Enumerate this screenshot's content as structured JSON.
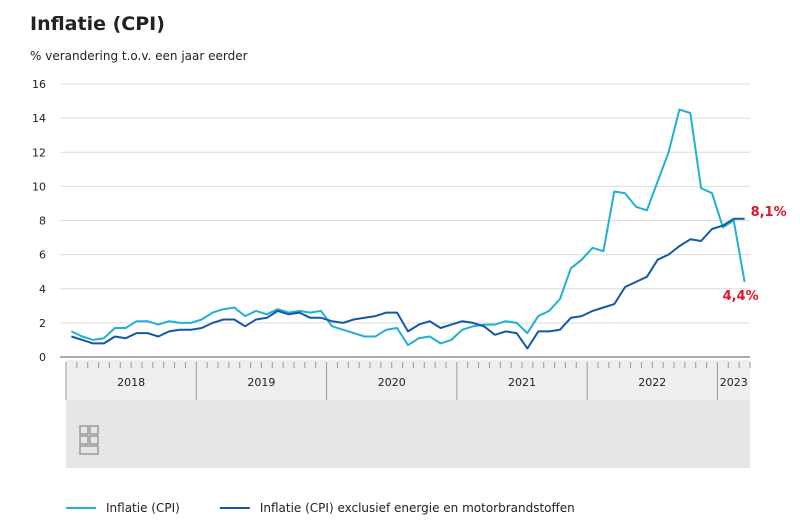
{
  "chart_data": {
    "type": "line",
    "title": "Inflatie (CPI)",
    "subtitle": "% verandering t.o.v. een jaar eerder",
    "years": [
      "2018",
      "2019",
      "2020",
      "2021",
      "2022",
      "2023"
    ],
    "categories": [
      null,
      null,
      null,
      null,
      null,
      null,
      null,
      null,
      null,
      null,
      null,
      null,
      null,
      null,
      null,
      null,
      null,
      null,
      null,
      null,
      null,
      null,
      null,
      null,
      null,
      null,
      null,
      null,
      null,
      null,
      null,
      null,
      null,
      null,
      null,
      null,
      null,
      null,
      null,
      null,
      null,
      null,
      null,
      null,
      null,
      null,
      null,
      null,
      null,
      null,
      null,
      null,
      null,
      null,
      null,
      null,
      null,
      null,
      null,
      null,
      null,
      null,
      null
    ],
    "ylim": [
      0,
      16
    ],
    "yticks": [
      0,
      2,
      4,
      6,
      8,
      10,
      12,
      14,
      16
    ],
    "grid": true,
    "series": [
      {
        "name": "Inflatie (CPI)",
        "color": "#21b0d3",
        "values": [
          1.5,
          1.2,
          1.0,
          1.1,
          1.7,
          1.7,
          2.1,
          2.1,
          1.9,
          2.1,
          2.0,
          2.0,
          2.2,
          2.6,
          2.8,
          2.9,
          2.4,
          2.7,
          2.5,
          2.8,
          2.6,
          2.7,
          2.6,
          2.7,
          1.8,
          1.6,
          1.4,
          1.2,
          1.2,
          1.6,
          1.7,
          0.7,
          1.1,
          1.2,
          0.8,
          1.0,
          1.6,
          1.8,
          1.9,
          1.9,
          2.1,
          2.0,
          1.4,
          2.4,
          2.7,
          3.4,
          5.2,
          5.7,
          6.4,
          6.2,
          9.7,
          9.6,
          8.8,
          8.6,
          10.3,
          12.0,
          14.5,
          14.3,
          9.9,
          9.6,
          7.6,
          8.0,
          4.4
        ],
        "value_labels": [
          null,
          null,
          null,
          null,
          null,
          null,
          null,
          null,
          null,
          null,
          null,
          null,
          null,
          null,
          null,
          null,
          null,
          null,
          null,
          null,
          null,
          null,
          null,
          null,
          null,
          null,
          null,
          null,
          null,
          null,
          null,
          null,
          null,
          null,
          null,
          null,
          null,
          null,
          null,
          null,
          null,
          null,
          null,
          null,
          null,
          null,
          null,
          null,
          null,
          null,
          null,
          null,
          null,
          null,
          null,
          null,
          null,
          null,
          null,
          null,
          null,
          null,
          "4,4%"
        ]
      },
      {
        "name": "Inflatie (CPI) exclusief energie en motorbrandstoffen",
        "color": "#1558a6",
        "values": [
          1.2,
          1.0,
          0.8,
          0.8,
          1.2,
          1.1,
          1.4,
          1.4,
          1.2,
          1.5,
          1.6,
          1.6,
          1.7,
          2.0,
          2.2,
          2.2,
          1.8,
          2.2,
          2.3,
          2.7,
          2.5,
          2.6,
          2.3,
          2.3,
          2.1,
          2.0,
          2.2,
          2.3,
          2.4,
          2.6,
          2.6,
          1.5,
          1.9,
          2.1,
          1.7,
          1.9,
          2.1,
          2.0,
          1.8,
          1.3,
          1.5,
          1.4,
          0.5,
          1.5,
          1.5,
          1.6,
          2.3,
          2.4,
          2.7,
          2.9,
          3.1,
          4.1,
          4.4,
          4.7,
          5.7,
          6.0,
          6.5,
          6.9,
          6.8,
          7.5,
          7.7,
          8.1,
          8.1
        ],
        "value_labels": [
          null,
          null,
          null,
          null,
          null,
          null,
          null,
          null,
          null,
          null,
          null,
          null,
          null,
          null,
          null,
          null,
          null,
          null,
          null,
          null,
          null,
          null,
          null,
          null,
          null,
          null,
          null,
          null,
          null,
          null,
          null,
          null,
          null,
          null,
          null,
          null,
          null,
          null,
          null,
          null,
          null,
          null,
          null,
          null,
          null,
          null,
          null,
          null,
          null,
          null,
          null,
          null,
          null,
          null,
          null,
          null,
          null,
          null,
          null,
          null,
          null,
          null,
          "8,1%"
        ]
      }
    ]
  }
}
